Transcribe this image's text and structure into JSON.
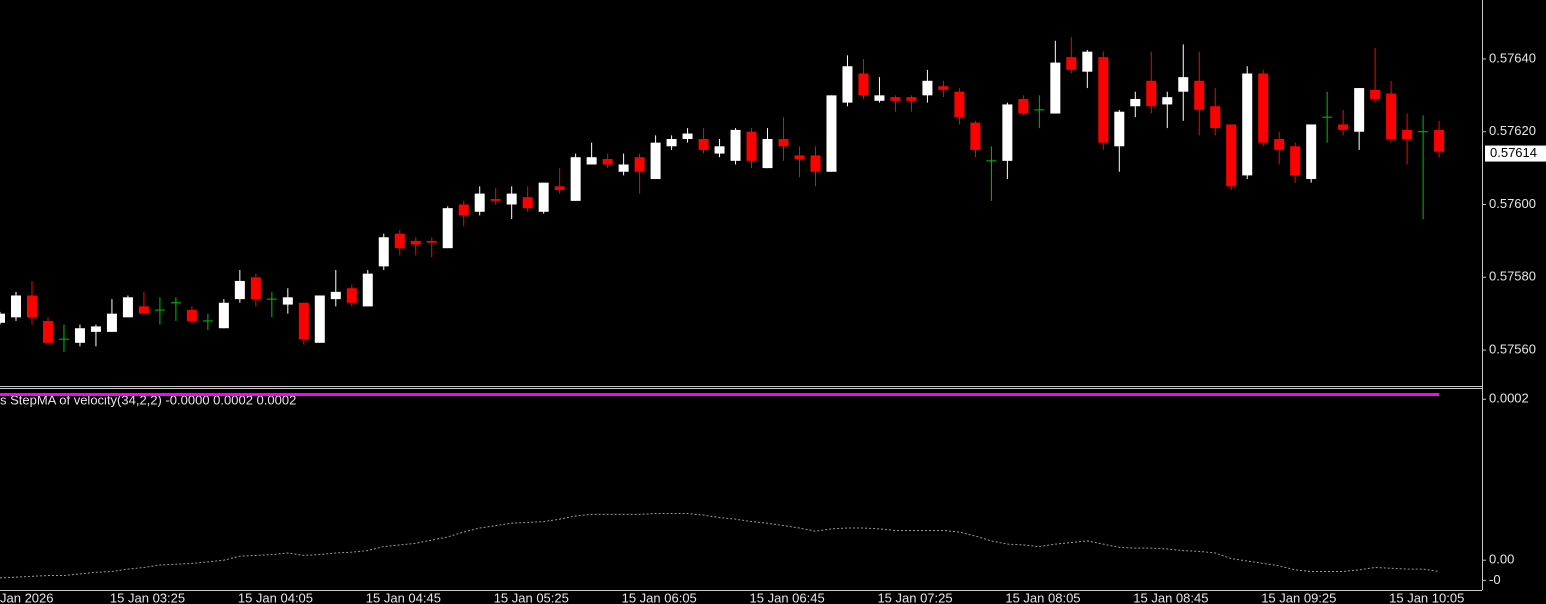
{
  "chart_data": [
    {
      "type": "candlestick",
      "categories": [
        "Jan 2026",
        null,
        null,
        null,
        null,
        null,
        null,
        "15 Jan 03:25",
        null,
        null,
        null,
        null,
        null,
        null,
        null,
        "15 Jan 04:05",
        null,
        null,
        null,
        null,
        null,
        null,
        null,
        "15 Jan 04:45",
        null,
        null,
        null,
        null,
        null,
        null,
        null,
        "15 Jan 05:25",
        null,
        null,
        null,
        null,
        null,
        null,
        null,
        "15 Jan 06:05",
        null,
        null,
        null,
        null,
        null,
        null,
        null,
        "15 Jan 06:45",
        null,
        null,
        null,
        null,
        null,
        null,
        null,
        "15 Jan 07:25",
        null,
        null,
        null,
        null,
        null,
        null,
        null,
        "15 Jan 08:05",
        null,
        null,
        null,
        null,
        null,
        null,
        null,
        "15 Jan 08:45",
        null,
        null,
        null,
        null,
        null,
        null,
        null,
        "15 Jan 09:25",
        null,
        null,
        null,
        null,
        null,
        null,
        null,
        "15 Jan 10:05",
        null,
        null,
        null
      ],
      "open": [
        0.575675,
        0.57569,
        0.57575,
        0.57568,
        0.57563,
        0.57562,
        0.57565,
        0.57565,
        0.57569,
        0.57572,
        0.57571,
        0.57573,
        0.57571,
        0.57568,
        0.57566,
        0.57574,
        0.5758,
        0.57574,
        0.575725,
        0.57573,
        0.57562,
        0.57574,
        0.57577,
        0.57572,
        0.57583,
        0.57592,
        0.5759,
        0.5759,
        0.57588,
        0.576,
        0.57598,
        0.576015,
        0.576,
        0.57602,
        0.57598,
        0.57605,
        0.57601,
        0.57611,
        0.576125,
        0.57609,
        0.57613,
        0.57607,
        0.57616,
        0.57618,
        0.57618,
        0.57614,
        0.57612,
        0.5762,
        0.5761,
        0.57618,
        0.576135,
        0.576135,
        0.57609,
        0.57628,
        0.57636,
        0.576285,
        0.576295,
        0.576295,
        0.5763,
        0.576325,
        0.57631,
        0.576225,
        0.57612,
        0.57612,
        0.57629,
        0.57626,
        0.57625,
        0.576405,
        0.576365,
        0.576405,
        0.57616,
        0.57627,
        0.57634,
        0.576275,
        0.57631,
        0.57634,
        0.57627,
        0.57622,
        0.57608,
        0.57636,
        0.57618,
        0.57616,
        0.57607,
        0.57624,
        0.57622,
        0.5762,
        0.576315,
        0.576305,
        0.576205,
        0.5762,
        0.576205
      ],
      "high": [
        0.575705,
        0.57576,
        0.57579,
        0.57569,
        0.57567,
        0.57567,
        0.57567,
        0.57574,
        0.57575,
        0.57576,
        0.575745,
        0.575745,
        0.57572,
        0.5757,
        0.57574,
        0.57582,
        0.57581,
        0.57576,
        0.57577,
        0.57573,
        0.57575,
        0.57582,
        0.57578,
        0.57582,
        0.57592,
        0.57593,
        0.57591,
        0.57591,
        0.575995,
        0.57601,
        0.57605,
        0.576045,
        0.57605,
        0.57605,
        0.57606,
        0.5761,
        0.57614,
        0.57617,
        0.57614,
        0.57614,
        0.57614,
        0.57619,
        0.57619,
        0.57621,
        0.57621,
        0.57618,
        0.57621,
        0.57621,
        0.57621,
        0.57624,
        0.57616,
        0.57616,
        0.5763,
        0.57641,
        0.5764,
        0.57635,
        0.5763,
        0.5763,
        0.57637,
        0.57634,
        0.57632,
        0.57623,
        0.57616,
        0.57628,
        0.5763,
        0.5763,
        0.57645,
        0.57646,
        0.576425,
        0.57642,
        0.57626,
        0.57631,
        0.57642,
        0.57631,
        0.57644,
        0.57642,
        0.57632,
        0.57622,
        0.57638,
        0.57637,
        0.5762,
        0.57617,
        0.57622,
        0.57631,
        0.57626,
        0.57632,
        0.57643,
        0.57634,
        0.57625,
        0.576245,
        0.57623
      ],
      "low": [
        0.57567,
        0.57568,
        0.57567,
        0.57562,
        0.575595,
        0.57561,
        0.57561,
        0.57565,
        0.57569,
        0.5757,
        0.57567,
        0.57568,
        0.575675,
        0.575655,
        0.57566,
        0.57573,
        0.57572,
        0.57569,
        0.5757,
        0.575615,
        0.57562,
        0.57572,
        0.57572,
        0.57572,
        0.57582,
        0.57586,
        0.57586,
        0.575855,
        0.57588,
        0.57594,
        0.57597,
        0.576,
        0.57596,
        0.57598,
        0.575975,
        0.57603,
        0.57601,
        0.57611,
        0.5761,
        0.57608,
        0.57603,
        0.57607,
        0.57615,
        0.57617,
        0.57614,
        0.57613,
        0.57611,
        0.5761,
        0.5761,
        0.57612,
        0.576075,
        0.57605,
        0.57609,
        0.57627,
        0.57629,
        0.57628,
        0.576255,
        0.576255,
        0.57628,
        0.576295,
        0.57622,
        0.57613,
        0.57601,
        0.57607,
        0.576245,
        0.57621,
        0.57625,
        0.57636,
        0.57632,
        0.57615,
        0.57609,
        0.57624,
        0.57625,
        0.57621,
        0.57623,
        0.57619,
        0.57619,
        0.57604,
        0.57607,
        0.57616,
        0.57611,
        0.57606,
        0.57606,
        0.57617,
        0.57619,
        0.57615,
        0.57628,
        0.57617,
        0.57611,
        0.57596,
        0.57613
      ],
      "close": [
        0.5757,
        0.57575,
        0.57569,
        0.57562,
        0.57563,
        0.57566,
        0.575665,
        0.5757,
        0.575745,
        0.5757,
        0.57571,
        0.57573,
        0.57568,
        0.57568,
        0.57573,
        0.57579,
        0.57574,
        0.57574,
        0.575745,
        0.57563,
        0.57575,
        0.57576,
        0.57573,
        0.57581,
        0.57591,
        0.57588,
        0.57589,
        0.575895,
        0.57599,
        0.57597,
        0.57603,
        0.57601,
        0.57603,
        0.57599,
        0.57606,
        0.57604,
        0.57613,
        0.57613,
        0.57611,
        0.57611,
        0.57609,
        0.57617,
        0.57618,
        0.576195,
        0.57615,
        0.57616,
        0.576205,
        0.57612,
        0.57618,
        0.57616,
        0.576125,
        0.57609,
        0.5763,
        0.57638,
        0.5763,
        0.5763,
        0.576285,
        0.576285,
        0.57634,
        0.576315,
        0.57624,
        0.57615,
        0.57612,
        0.576275,
        0.57625,
        0.57626,
        0.57639,
        0.57637,
        0.57642,
        0.57617,
        0.576255,
        0.57629,
        0.57627,
        0.576295,
        0.57635,
        0.57626,
        0.57621,
        0.57605,
        0.57636,
        0.57617,
        0.57615,
        0.57608,
        0.57622,
        0.57624,
        0.576205,
        0.57632,
        0.57629,
        0.57618,
        0.57618,
        0.5762,
        0.576145
      ],
      "ylim": [
        0.575504,
        0.576562
      ],
      "yticks": [
        {
          "value": 0.5764,
          "label": "0.57640"
        },
        {
          "value": 0.5762,
          "label": "0.57620"
        },
        {
          "value": 0.576,
          "label": "0.57600"
        },
        {
          "value": 0.5758,
          "label": "0.57580"
        },
        {
          "value": 0.5756,
          "label": "0.57560"
        }
      ],
      "current_price": 0.57614,
      "up_color": "#ffffff",
      "down_color": "#ff0000",
      "doji_color": "#00c000"
    },
    {
      "type": "line",
      "title": "s StepMA of velocity(34,2,2) -0.0000 0.0002 0.0002",
      "series": [
        {
          "color": "#ff00ff",
          "style": "solid",
          "values": [
            0.000206,
            0.000206,
            0.000206,
            0.000206,
            0.000206,
            0.000206,
            0.000206,
            0.000206,
            0.000206,
            0.000206,
            0.000206,
            0.000206,
            0.000206,
            0.000206,
            0.000206,
            0.000206,
            0.000206,
            0.000206,
            0.000206,
            0.000206,
            0.000206,
            0.000206,
            0.000206,
            0.000206,
            0.000206,
            0.000206,
            0.000206,
            0.000206,
            0.000206,
            0.000206,
            0.000206,
            0.000206,
            0.000206,
            0.000206,
            0.000206,
            0.000206,
            0.000206,
            0.000206,
            0.000206,
            0.000206,
            0.000206,
            0.000206,
            0.000206,
            0.000206,
            0.000206,
            0.000206,
            0.000206,
            0.000206,
            0.000206,
            0.000206,
            0.000206,
            0.000206,
            0.000206,
            0.000206,
            0.000206,
            0.000206,
            0.000206,
            0.000206,
            0.000206,
            0.000206,
            0.000206,
            0.000206,
            0.000206,
            0.000206,
            0.000206,
            0.000206,
            0.000206,
            0.000206,
            0.000206,
            0.000206,
            0.000206,
            0.000206,
            0.000206,
            0.000206,
            0.000206,
            0.000206,
            0.000206,
            0.000206,
            0.000206,
            0.000206,
            0.000206,
            0.000206,
            0.000206,
            0.000206,
            0.000206,
            0.000206,
            0.000206,
            0.000206,
            0.000206,
            0.000206,
            0.000206
          ]
        },
        {
          "color": "#9a9a9a",
          "style": "dotted",
          "values": [
            -2.2e-05,
            -2.1e-05,
            -2e-05,
            -1.9e-05,
            -1.9e-05,
            -1.7e-05,
            -1.5e-05,
            -1.4e-05,
            -1.1e-05,
            -9e-06,
            -6e-06,
            -5e-06,
            -4e-06,
            -2e-06,
            0,
            5e-06,
            6e-06,
            7e-06,
            9e-06,
            6e-06,
            7e-06,
            9e-06,
            1e-05,
            1.2e-05,
            1.7e-05,
            1.9e-05,
            2.1e-05,
            2.5e-05,
            2.9e-05,
            3.5e-05,
            4e-05,
            4.3e-05,
            4.6e-05,
            4.7e-05,
            4.8e-05,
            5.1e-05,
            5.5e-05,
            5.7e-05,
            5.7e-05,
            5.7e-05,
            5.7e-05,
            5.8e-05,
            5.8e-05,
            5.8e-05,
            5.6e-05,
            5.3e-05,
            5.1e-05,
            4.8e-05,
            4.6e-05,
            4.3e-05,
            4e-05,
            3.6e-05,
            3.9e-05,
            4e-05,
            4e-05,
            3.9e-05,
            3.7e-05,
            3.7e-05,
            3.7e-05,
            3.7e-05,
            3.5e-05,
            3e-05,
            2.4e-05,
            2e-05,
            1.9e-05,
            1.7e-05,
            2e-05,
            2.2e-05,
            2.4e-05,
            2e-05,
            1.6e-05,
            1.5e-05,
            1.5e-05,
            1.4e-05,
            1.2e-05,
            1.1e-05,
            9e-06,
            2e-06,
            -1e-06,
            -4e-06,
            -7e-06,
            -1.2e-05,
            -1.4e-05,
            -1.4e-05,
            -1.4e-05,
            -1.2e-05,
            -9e-06,
            -1e-05,
            -1.1e-05,
            -1.1e-05,
            -1.4e-05
          ]
        }
      ],
      "ylim": [
        -3.7e-05,
        0.000214
      ],
      "yticks": [
        0.0002,
        {
          "value": 0,
          "label": "0.00"
        },
        {
          "value": -2.5e-05,
          "label": "-0"
        }
      ]
    }
  ]
}
